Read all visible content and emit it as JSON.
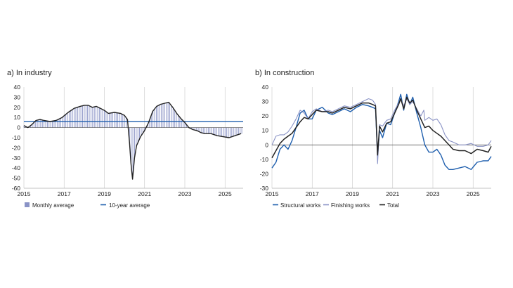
{
  "colors": {
    "bar": "#8a93c6",
    "ten_year": "#1f5fae",
    "composite": "#222222",
    "structural": "#1f5fae",
    "finishing": "#8a93c6",
    "total": "#222222",
    "grid": "#c8c8c8"
  },
  "chart_data": [
    {
      "id": "industry",
      "type": "bar",
      "title": "a)  In industry",
      "xlim": [
        2015,
        2025.9
      ],
      "ylim": [
        -60,
        40
      ],
      "yticks": [
        40,
        30,
        20,
        10,
        0,
        -10,
        -20,
        -30,
        -40,
        -50,
        -60
      ],
      "xticks": [
        2015,
        2017,
        2019,
        2021,
        2023,
        2025
      ],
      "ten_year_average": 6,
      "legend": [
        "Monthly average",
        "10-year average"
      ],
      "series": [
        {
          "name": "Monthly average",
          "points": [
            [
              2015.0,
              2
            ],
            [
              2015.2,
              0
            ],
            [
              2015.4,
              3
            ],
            [
              2015.6,
              7
            ],
            [
              2015.8,
              8
            ],
            [
              2016.0,
              7
            ],
            [
              2016.3,
              6
            ],
            [
              2016.6,
              7
            ],
            [
              2016.9,
              10
            ],
            [
              2017.2,
              15
            ],
            [
              2017.5,
              19
            ],
            [
              2017.8,
              21
            ],
            [
              2018.0,
              22
            ],
            [
              2018.2,
              22
            ],
            [
              2018.4,
              20
            ],
            [
              2018.6,
              21
            ],
            [
              2018.8,
              19
            ],
            [
              2019.0,
              17
            ],
            [
              2019.2,
              14
            ],
            [
              2019.5,
              15
            ],
            [
              2019.8,
              14
            ],
            [
              2020.0,
              12
            ],
            [
              2020.15,
              8
            ],
            [
              2020.25,
              -15
            ],
            [
              2020.32,
              -35
            ],
            [
              2020.4,
              -51
            ],
            [
              2020.5,
              -30
            ],
            [
              2020.6,
              -18
            ],
            [
              2020.8,
              -9
            ],
            [
              2021.0,
              -3
            ],
            [
              2021.2,
              5
            ],
            [
              2021.4,
              16
            ],
            [
              2021.6,
              21
            ],
            [
              2021.8,
              23
            ],
            [
              2022.0,
              24
            ],
            [
              2022.2,
              25
            ],
            [
              2022.4,
              20
            ],
            [
              2022.6,
              14
            ],
            [
              2022.8,
              9
            ],
            [
              2023.0,
              5
            ],
            [
              2023.2,
              0
            ],
            [
              2023.4,
              -2
            ],
            [
              2023.6,
              -3
            ],
            [
              2023.8,
              -5
            ],
            [
              2024.0,
              -6
            ],
            [
              2024.3,
              -6
            ],
            [
              2024.6,
              -8
            ],
            [
              2024.9,
              -9
            ],
            [
              2025.2,
              -10
            ],
            [
              2025.5,
              -8
            ],
            [
              2025.8,
              -6
            ]
          ]
        }
      ]
    },
    {
      "id": "construction",
      "type": "line",
      "title": "b)  In construction",
      "xlim": [
        2015,
        2025.9
      ],
      "ylim": [
        -30,
        40
      ],
      "yticks": [
        40,
        30,
        20,
        10,
        0,
        -10,
        -20,
        -30
      ],
      "xticks": [
        2015,
        2017,
        2019,
        2021,
        2023,
        2025
      ],
      "legend": [
        "Structural works",
        "Finishing works",
        "Total"
      ],
      "series": [
        {
          "name": "Structural works",
          "points": [
            [
              2015.0,
              -16
            ],
            [
              2015.2,
              -12
            ],
            [
              2015.4,
              -3
            ],
            [
              2015.6,
              0
            ],
            [
              2015.8,
              -3
            ],
            [
              2016.0,
              3
            ],
            [
              2016.2,
              12
            ],
            [
              2016.4,
              22
            ],
            [
              2016.6,
              24
            ],
            [
              2016.8,
              18
            ],
            [
              2017.0,
              18
            ],
            [
              2017.2,
              24
            ],
            [
              2017.5,
              26
            ],
            [
              2017.8,
              22
            ],
            [
              2018.0,
              21
            ],
            [
              2018.3,
              23
            ],
            [
              2018.6,
              25
            ],
            [
              2018.9,
              23
            ],
            [
              2019.2,
              26
            ],
            [
              2019.5,
              28
            ],
            [
              2019.8,
              27
            ],
            [
              2020.0,
              26
            ],
            [
              2020.15,
              25
            ],
            [
              2020.25,
              -8
            ],
            [
              2020.35,
              10
            ],
            [
              2020.5,
              5
            ],
            [
              2020.7,
              15
            ],
            [
              2020.9,
              14
            ],
            [
              2021.1,
              22
            ],
            [
              2021.3,
              30
            ],
            [
              2021.4,
              35
            ],
            [
              2021.55,
              24
            ],
            [
              2021.7,
              35
            ],
            [
              2021.85,
              28
            ],
            [
              2022.0,
              33
            ],
            [
              2022.2,
              22
            ],
            [
              2022.4,
              12
            ],
            [
              2022.6,
              0
            ],
            [
              2022.8,
              -5
            ],
            [
              2023.0,
              -5
            ],
            [
              2023.2,
              -3
            ],
            [
              2023.4,
              -7
            ],
            [
              2023.6,
              -14
            ],
            [
              2023.8,
              -17
            ],
            [
              2024.0,
              -17
            ],
            [
              2024.3,
              -16
            ],
            [
              2024.6,
              -15
            ],
            [
              2024.9,
              -17
            ],
            [
              2025.2,
              -12
            ],
            [
              2025.5,
              -11
            ],
            [
              2025.75,
              -11
            ],
            [
              2025.9,
              -8
            ]
          ]
        },
        {
          "name": "Finishing works",
          "points": [
            [
              2015.0,
              0
            ],
            [
              2015.2,
              6
            ],
            [
              2015.4,
              7
            ],
            [
              2015.6,
              7
            ],
            [
              2015.8,
              9
            ],
            [
              2016.0,
              13
            ],
            [
              2016.2,
              18
            ],
            [
              2016.4,
              24
            ],
            [
              2016.6,
              22
            ],
            [
              2016.8,
              18
            ],
            [
              2017.0,
              23
            ],
            [
              2017.2,
              25
            ],
            [
              2017.5,
              23
            ],
            [
              2017.8,
              24
            ],
            [
              2018.0,
              23
            ],
            [
              2018.3,
              25
            ],
            [
              2018.6,
              27
            ],
            [
              2018.9,
              26
            ],
            [
              2019.2,
              28
            ],
            [
              2019.5,
              30
            ],
            [
              2019.8,
              32
            ],
            [
              2020.0,
              31
            ],
            [
              2020.15,
              28
            ],
            [
              2020.25,
              -13
            ],
            [
              2020.35,
              14
            ],
            [
              2020.5,
              13
            ],
            [
              2020.7,
              17
            ],
            [
              2020.9,
              18
            ],
            [
              2021.1,
              24
            ],
            [
              2021.3,
              29
            ],
            [
              2021.4,
              32
            ],
            [
              2021.55,
              27
            ],
            [
              2021.7,
              32
            ],
            [
              2021.85,
              28
            ],
            [
              2022.0,
              30
            ],
            [
              2022.2,
              25
            ],
            [
              2022.4,
              20
            ],
            [
              2022.55,
              24
            ],
            [
              2022.6,
              17
            ],
            [
              2022.8,
              19
            ],
            [
              2023.0,
              17
            ],
            [
              2023.2,
              18
            ],
            [
              2023.4,
              14
            ],
            [
              2023.6,
              7
            ],
            [
              2023.8,
              3
            ],
            [
              2024.0,
              2
            ],
            [
              2024.3,
              0
            ],
            [
              2024.6,
              0
            ],
            [
              2024.9,
              1
            ],
            [
              2025.2,
              -1
            ],
            [
              2025.5,
              -1
            ],
            [
              2025.75,
              0
            ],
            [
              2025.9,
              3
            ]
          ]
        },
        {
          "name": "Total",
          "points": [
            [
              2015.0,
              -9
            ],
            [
              2015.2,
              -4
            ],
            [
              2015.4,
              1
            ],
            [
              2015.6,
              4
            ],
            [
              2015.8,
              6
            ],
            [
              2016.0,
              8
            ],
            [
              2016.2,
              12
            ],
            [
              2016.4,
              16
            ],
            [
              2016.6,
              19
            ],
            [
              2016.8,
              18
            ],
            [
              2017.0,
              21
            ],
            [
              2017.2,
              24
            ],
            [
              2017.5,
              23
            ],
            [
              2017.8,
              23
            ],
            [
              2018.0,
              22
            ],
            [
              2018.3,
              24
            ],
            [
              2018.6,
              26
            ],
            [
              2018.9,
              25
            ],
            [
              2019.2,
              27
            ],
            [
              2019.5,
              29
            ],
            [
              2019.8,
              29
            ],
            [
              2020.0,
              28
            ],
            [
              2020.15,
              27
            ],
            [
              2020.25,
              -7
            ],
            [
              2020.35,
              13
            ],
            [
              2020.5,
              9
            ],
            [
              2020.7,
              15
            ],
            [
              2020.9,
              16
            ],
            [
              2021.1,
              22
            ],
            [
              2021.3,
              28
            ],
            [
              2021.4,
              32
            ],
            [
              2021.55,
              25
            ],
            [
              2021.7,
              33
            ],
            [
              2021.85,
              29
            ],
            [
              2022.0,
              31
            ],
            [
              2022.2,
              24
            ],
            [
              2022.4,
              18
            ],
            [
              2022.6,
              12
            ],
            [
              2022.8,
              13
            ],
            [
              2023.0,
              10
            ],
            [
              2023.2,
              8
            ],
            [
              2023.4,
              6
            ],
            [
              2023.6,
              3
            ],
            [
              2023.8,
              0
            ],
            [
              2024.0,
              -3
            ],
            [
              2024.3,
              -4
            ],
            [
              2024.6,
              -4
            ],
            [
              2024.9,
              -6
            ],
            [
              2025.2,
              -3
            ],
            [
              2025.5,
              -4
            ],
            [
              2025.75,
              -5
            ],
            [
              2025.9,
              -1
            ]
          ]
        }
      ]
    }
  ]
}
